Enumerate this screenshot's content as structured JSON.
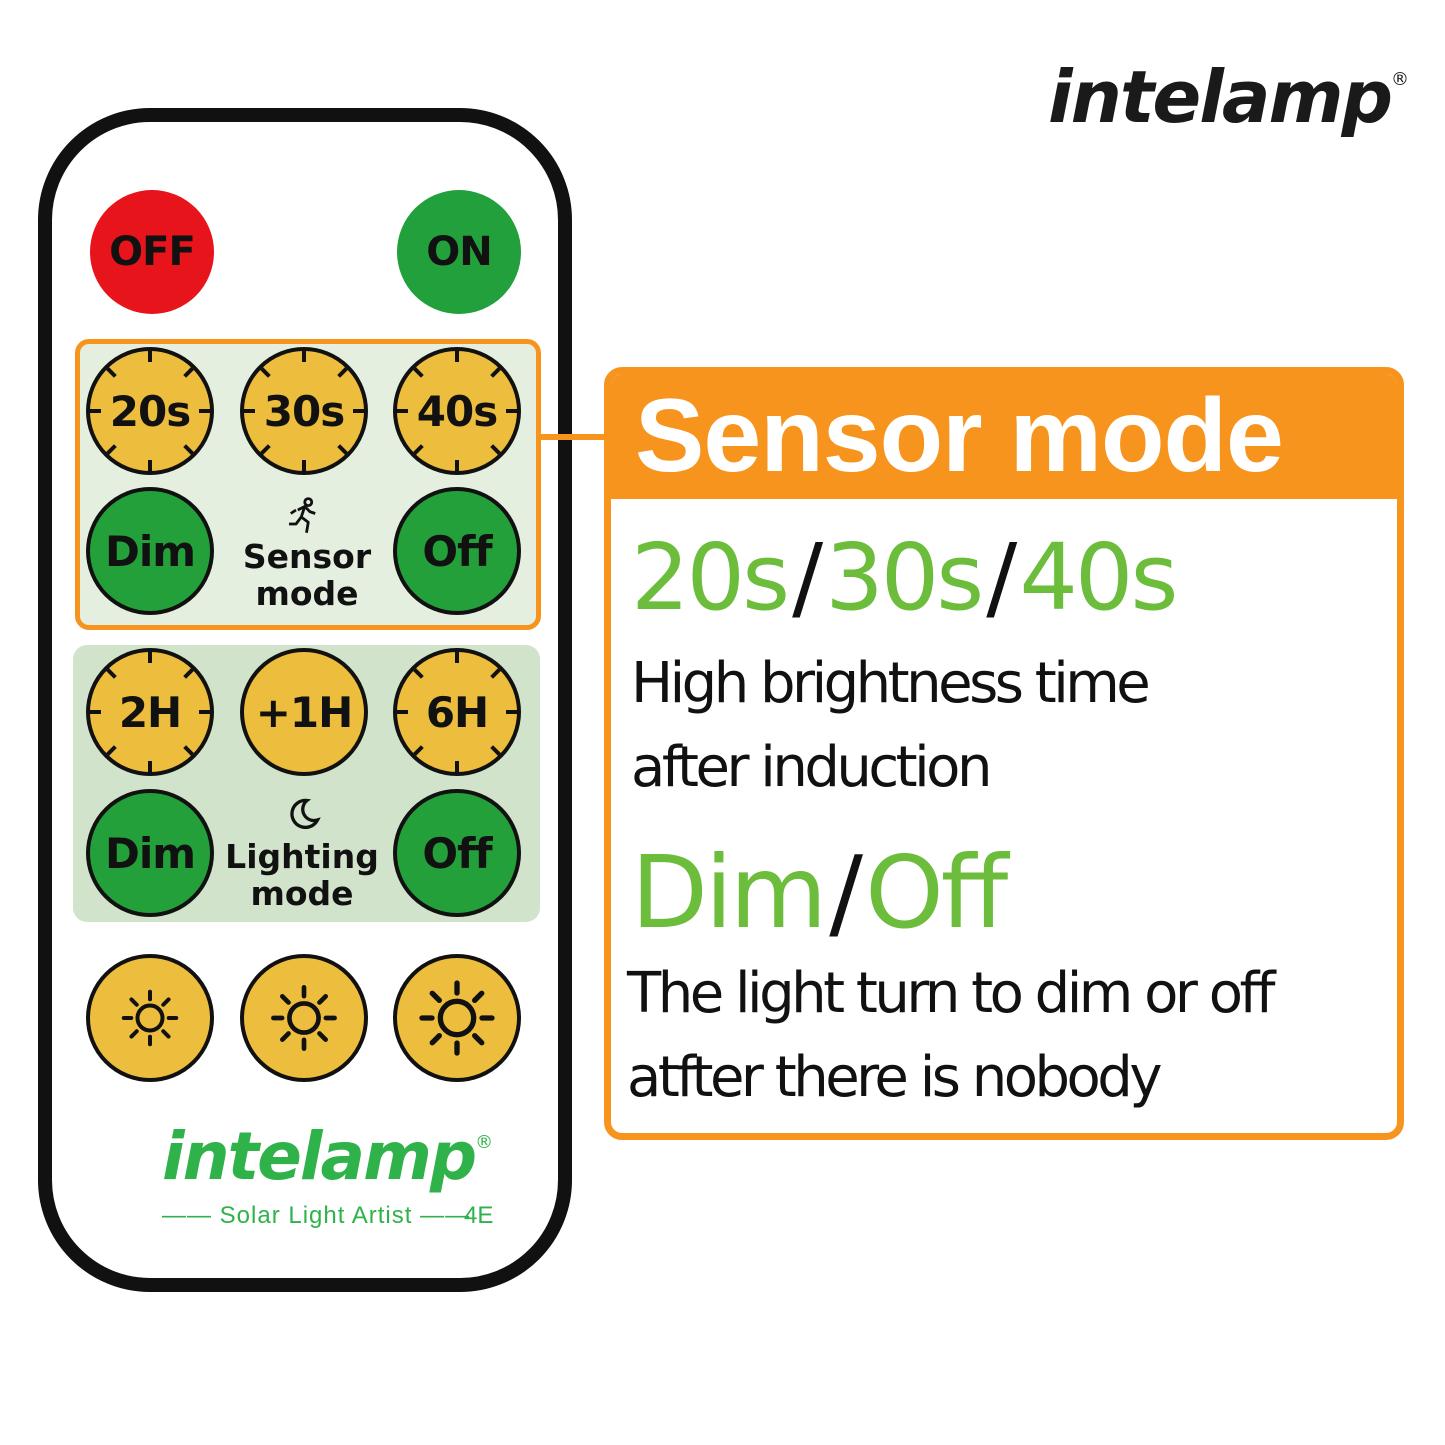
{
  "brand": {
    "name": "intelamp",
    "registered": "®",
    "tagline": "Solar Light Artist",
    "model": "4E"
  },
  "colors": {
    "orange": "#f7941d",
    "green_text": "#6bbd3b",
    "red_button": "#e8141c",
    "green_button": "#21a03c",
    "yellow_button": "#edbd3d",
    "brand_green": "#2fb24a"
  },
  "remote": {
    "power": {
      "off": "OFF",
      "on": "ON"
    },
    "sensor_panel": {
      "timers": [
        "20s",
        "30s",
        "40s"
      ],
      "dim": "Dim",
      "off": "Off",
      "label_line1": "Sensor",
      "label_line2": "mode",
      "icon": "running-person-icon"
    },
    "lighting_panel": {
      "timers": [
        "2H",
        "+1H",
        "6H"
      ],
      "dim": "Dim",
      "off": "Off",
      "label_line1": "Lighting",
      "label_line2": "mode",
      "icon": "moon-icon"
    },
    "brightness_buttons": [
      "brightness-low-icon",
      "brightness-medium-icon",
      "brightness-high-icon"
    ]
  },
  "callout": {
    "title": "Sensor mode",
    "times": [
      "20s",
      "30s",
      "40s"
    ],
    "separator": "/",
    "times_desc_line1": "High brightness time",
    "times_desc_line2": "after induction",
    "modes": [
      "Dim",
      "Off"
    ],
    "modes_desc_line1": "The light turn to dim or off",
    "modes_desc_line2": "atfter there is nobody"
  }
}
